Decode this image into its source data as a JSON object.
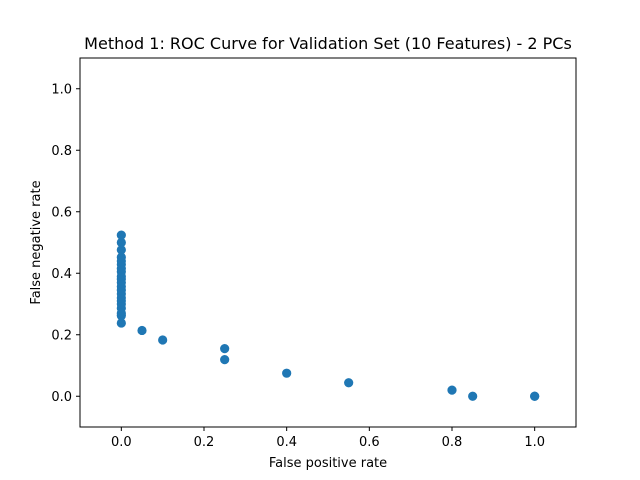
{
  "chart_data": {
    "type": "scatter",
    "title": "Method 1: ROC Curve for Validation Set (10 Features) - 2 PCs",
    "xlabel": "False positive rate",
    "ylabel": "False negative rate",
    "xlim": [
      -0.1,
      1.1
    ],
    "ylim": [
      -0.1,
      1.1
    ],
    "x_ticks": [
      0.0,
      0.2,
      0.4,
      0.6,
      0.8,
      1.0
    ],
    "y_ticks": [
      0.0,
      0.2,
      0.4,
      0.6,
      0.8,
      1.0
    ],
    "x_tick_labels": [
      "0.0",
      "0.2",
      "0.4",
      "0.6",
      "0.8",
      "1.0"
    ],
    "y_tick_labels": [
      "0.0",
      "0.2",
      "0.4",
      "0.6",
      "0.8",
      "1.0"
    ],
    "grid": false,
    "marker_color": "#1f77b4",
    "series": [
      {
        "x": [
          0.0,
          0.0,
          0.0,
          0.0,
          0.0,
          0.0,
          0.0,
          0.0,
          0.0,
          0.0,
          0.0,
          0.0,
          0.0,
          0.0,
          0.0,
          0.0,
          0.0,
          0.0,
          0.0,
          0.0,
          0.0,
          0.05,
          0.1,
          0.25,
          0.25,
          0.4,
          0.55,
          0.8,
          0.85,
          1.0,
          1.0
        ],
        "y": [
          0.238,
          0.262,
          0.286,
          0.31,
          0.333,
          0.357,
          0.381,
          0.405,
          0.429,
          0.452,
          0.476,
          0.5,
          0.524,
          0.27,
          0.3,
          0.32,
          0.345,
          0.37,
          0.39,
          0.415,
          0.44,
          0.214,
          0.183,
          0.155,
          0.119,
          0.075,
          0.044,
          0.02,
          0.0,
          0.0,
          0.0
        ]
      }
    ]
  }
}
